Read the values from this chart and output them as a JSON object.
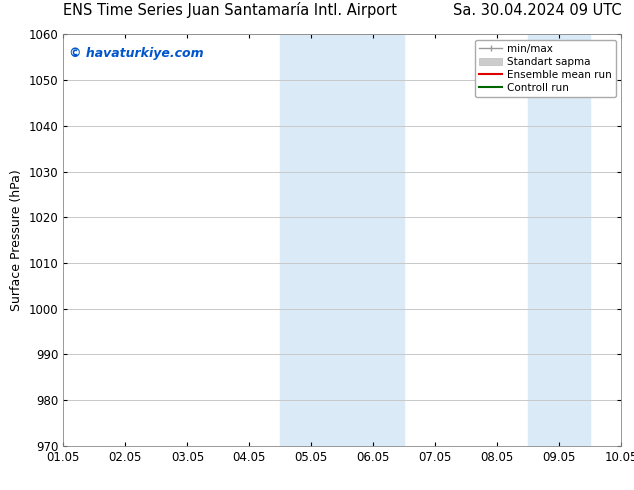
{
  "title_left": "ENS Time Series Juan Santamaría Intl. Airport",
  "title_right": "Sa. 30.04.2024 09 UTC",
  "ylabel": "Surface Pressure (hPa)",
  "ylim": [
    970,
    1060
  ],
  "yticks": [
    970,
    980,
    990,
    1000,
    1010,
    1020,
    1030,
    1040,
    1050,
    1060
  ],
  "xtick_labels": [
    "01.05",
    "02.05",
    "03.05",
    "04.05",
    "05.05",
    "06.05",
    "07.05",
    "08.05",
    "09.05",
    "10.05"
  ],
  "watermark": "© havaturkiye.com",
  "watermark_color": "#0055cc",
  "shaded_regions": [
    {
      "xstart": 3.5,
      "xend": 5.5,
      "color": "#daeaf7"
    },
    {
      "xstart": 7.5,
      "xend": 8.5,
      "color": "#daeaf7"
    }
  ],
  "background_color": "#ffffff",
  "grid_color": "#c8c8c8",
  "title_fontsize": 10.5,
  "axis_label_fontsize": 9,
  "tick_fontsize": 8.5,
  "watermark_fontsize": 9
}
